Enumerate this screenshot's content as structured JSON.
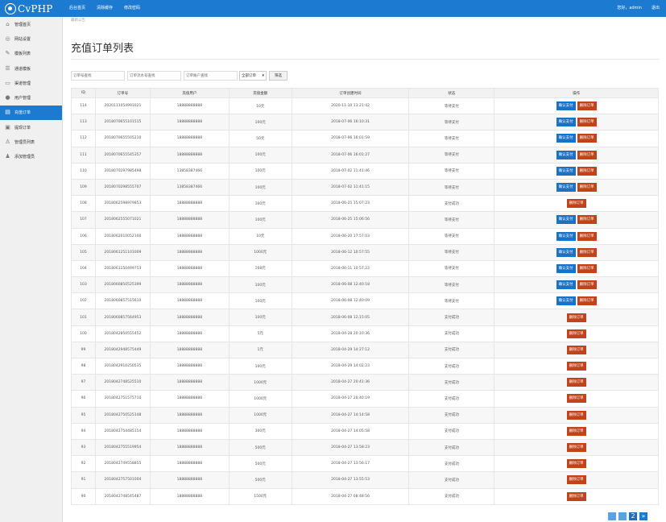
{
  "app": {
    "logo_text": "CvPHP"
  },
  "topnav": [
    "后台首页",
    "清除缓存",
    "修改密码"
  ],
  "topright": {
    "greeting": "您好，admin",
    "logout": "退出"
  },
  "sidebar": {
    "items": [
      {
        "label": "管理首页",
        "icon": "home-icon",
        "glyph": "⌂"
      },
      {
        "label": "网站设置",
        "icon": "globe-icon",
        "glyph": "◎"
      },
      {
        "label": "模板列表",
        "icon": "edit-icon",
        "glyph": "✎"
      },
      {
        "label": "通道模板",
        "icon": "list-icon",
        "glyph": "☰"
      },
      {
        "label": "渠道管理",
        "icon": "window-icon",
        "glyph": "▭"
      },
      {
        "label": "用户管理",
        "icon": "user-icon",
        "glyph": "●"
      },
      {
        "label": "充值订单",
        "icon": "cart-icon",
        "glyph": "▤",
        "active": true
      },
      {
        "label": "提现订单",
        "icon": "card-icon",
        "glyph": "▣"
      },
      {
        "label": "管理员列表",
        "icon": "person-icon",
        "glyph": "♙"
      },
      {
        "label": "添加管理员",
        "icon": "add-user-icon",
        "glyph": "♟"
      }
    ]
  },
  "breadcrumb": "最新公告",
  "page_title": "充值订单列表",
  "filters": {
    "order_no_placeholder": "订单号查找",
    "tx_no_placeholder": "订单流水号查找",
    "user_placeholder": "订单账户查找",
    "select_value": "全部订单",
    "search_button": "筛选"
  },
  "table": {
    "headers": [
      "ID",
      "订单号",
      "充值用户",
      "充值金额",
      "订单创建时间",
      "状态",
      "操作"
    ],
    "confirm_label": "确认支付",
    "delete_label": "删除订单",
    "rows": [
      {
        "id": "114",
        "no": "2020111054991021",
        "user": "18888888888",
        "amount": "10元",
        "time": "2020-11-10 13:21:42",
        "status": "等待支付",
        "pending": true
      },
      {
        "id": "113",
        "no": "2018070655101515",
        "user": "18888888888",
        "amount": "100元",
        "time": "2018-07-06 16:10:31",
        "status": "等待支付",
        "pending": true
      },
      {
        "id": "112",
        "no": "2018070655505210",
        "user": "18888888888",
        "amount": "50元",
        "time": "2018-07-06 16:01:59",
        "status": "等待支付",
        "pending": true
      },
      {
        "id": "111",
        "no": "2018070655545357",
        "user": "18888888888",
        "amount": "100元",
        "time": "2018-07-06 16:01:27",
        "status": "等待支付",
        "pending": true
      },
      {
        "id": "110",
        "no": "2018070297985498",
        "user": "13858387466",
        "amount": "100元",
        "time": "2018-07-02 11:41:46",
        "status": "等待支付",
        "pending": true
      },
      {
        "id": "109",
        "no": "2018070298555707",
        "user": "13858387466",
        "amount": "100元",
        "time": "2018-07-02 11:41:15",
        "status": "等待支付",
        "pending": true
      },
      {
        "id": "108",
        "no": "2018062598979853",
        "user": "18888888888",
        "amount": "100元",
        "time": "2018-06-25 15:07:23",
        "status": "支付成功",
        "pending": false
      },
      {
        "id": "107",
        "no": "2018062555071021",
        "user": "18888888888",
        "amount": "100元",
        "time": "2018-06-25 15:06:56",
        "status": "等待支付",
        "pending": true
      },
      {
        "id": "106",
        "no": "2018062010052100",
        "user": "18888888888",
        "amount": "10元",
        "time": "2018-06-20 17:57:03",
        "status": "等待支付",
        "pending": true
      },
      {
        "id": "105",
        "no": "2018061251101009",
        "user": "18888888888",
        "amount": "1000元",
        "time": "2018-06-12 10:57:55",
        "status": "等待支付",
        "pending": true
      },
      {
        "id": "104",
        "no": "2018061150499753",
        "user": "18888888888",
        "amount": "168元",
        "time": "2018-06-11 10:57:22",
        "status": "等待支付",
        "pending": true
      },
      {
        "id": "103",
        "no": "2018060850525399",
        "user": "18888888888",
        "amount": "100元",
        "time": "2018-06-08 12:40:18",
        "status": "等待支付",
        "pending": true
      },
      {
        "id": "102",
        "no": "2018060857515610",
        "user": "18888888888",
        "amount": "100元",
        "time": "2018-06-08 12:40:09",
        "status": "等待支付",
        "pending": true
      },
      {
        "id": "101",
        "no": "2018060857564953",
        "user": "18888888888",
        "amount": "100元",
        "time": "2018-06-08 12:15:05",
        "status": "支付成功",
        "pending": false
      },
      {
        "id": "100",
        "no": "2018042850555452",
        "user": "18888888888",
        "amount": "5元",
        "time": "2018-04-28 20:10:36",
        "status": "支付成功",
        "pending": false
      },
      {
        "id": "99",
        "no": "2018042948575449",
        "user": "18888888888",
        "amount": "1元",
        "time": "2018-04-29 14:27:12",
        "status": "支付成功",
        "pending": false
      },
      {
        "id": "98",
        "no": "2018042910250535",
        "user": "18888888888",
        "amount": "100元",
        "time": "2018-04-29 14:02:23",
        "status": "支付成功",
        "pending": false
      },
      {
        "id": "97",
        "no": "2018042748525510",
        "user": "18888888888",
        "amount": "1000元",
        "time": "2018-04-27 20:41:36",
        "status": "支付成功",
        "pending": false
      },
      {
        "id": "96",
        "no": "2018042751575710",
        "user": "18888888888",
        "amount": "1000元",
        "time": "2018-04-27 20:40:19",
        "status": "支付成功",
        "pending": false
      },
      {
        "id": "95",
        "no": "2018042750525148",
        "user": "18888888888",
        "amount": "1000元",
        "time": "2018-04-27 14:14:58",
        "status": "支付成功",
        "pending": false
      },
      {
        "id": "94",
        "no": "2018042754485154",
        "user": "18888888888",
        "amount": "300元",
        "time": "2018-04-27 14:05:58",
        "status": "支付成功",
        "pending": false
      },
      {
        "id": "93",
        "no": "2018042755519954",
        "user": "18888888888",
        "amount": "500元",
        "time": "2018-04-27 13:58:23",
        "status": "支付成功",
        "pending": false
      },
      {
        "id": "92",
        "no": "2018042749558855",
        "user": "18888888888",
        "amount": "500元",
        "time": "2018-04-27 13:56:17",
        "status": "支付成功",
        "pending": false
      },
      {
        "id": "91",
        "no": "2018042757501004",
        "user": "18888888888",
        "amount": "500元",
        "time": "2018-04-27 13:55:53",
        "status": "支付成功",
        "pending": false
      },
      {
        "id": "90",
        "no": "2018042748545487",
        "user": "18888888888",
        "amount": "1500元",
        "time": "2018-04-27 08:48:56",
        "status": "支付成功",
        "pending": false
      }
    ]
  },
  "pager": {
    "pages": [
      "2"
    ],
    "next": "»"
  }
}
